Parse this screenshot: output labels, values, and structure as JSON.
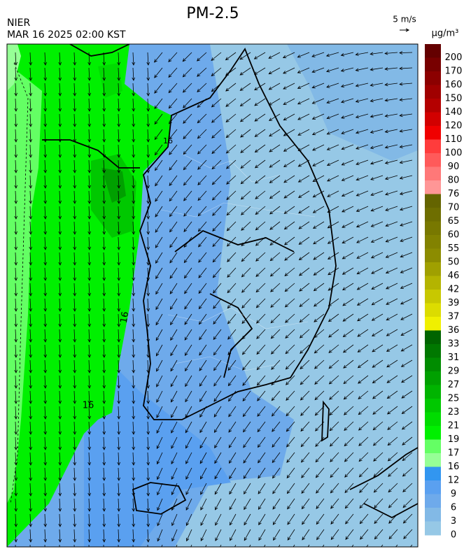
{
  "header": {
    "title": "PM-2.5",
    "agency": "NIER",
    "timestamp": "MAR 16 2025 02:00 KST",
    "wind_scale": "5 m/s"
  },
  "colorbar": {
    "unit": "μg/m³",
    "levels": [
      200,
      170,
      160,
      150,
      140,
      120,
      110,
      100,
      90,
      80,
      76,
      70,
      65,
      60,
      55,
      50,
      46,
      42,
      39,
      37,
      36,
      33,
      31,
      29,
      27,
      25,
      23,
      21,
      19,
      17,
      16,
      12,
      9,
      6,
      3,
      0
    ],
    "colors": [
      "#640000",
      "#780000",
      "#8c0000",
      "#a00000",
      "#b40000",
      "#d20000",
      "#f00000",
      "#ff3c3c",
      "#ff5a5a",
      "#ff7878",
      "#ff9696",
      "#646400",
      "#6e6e00",
      "#787800",
      "#828200",
      "#8c8c00",
      "#a0a000",
      "#b4b400",
      "#c8c800",
      "#dcdc00",
      "#f0f000",
      "#006400",
      "#007800",
      "#008c00",
      "#00a000",
      "#00b400",
      "#00c800",
      "#00dc00",
      "#00f000",
      "#64ff64",
      "#96ff96",
      "#3296f0",
      "#5aa0f0",
      "#6eaaeb",
      "#82b9e6",
      "#96c8e6"
    ]
  },
  "contour_labels": [
    16,
    16,
    16
  ]
}
